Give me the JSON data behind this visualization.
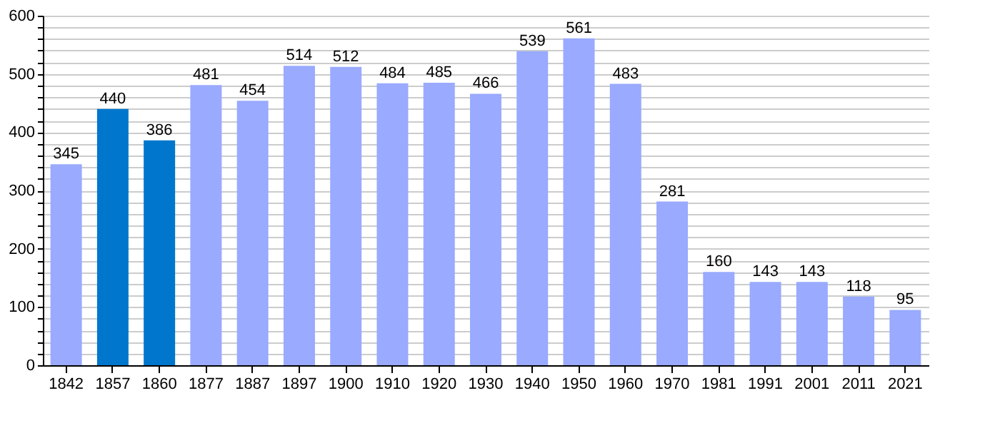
{
  "chart_data": {
    "type": "bar",
    "categories": [
      "1842",
      "1857",
      "1860",
      "1877",
      "1887",
      "1897",
      "1900",
      "1910",
      "1920",
      "1930",
      "1940",
      "1950",
      "1960",
      "1970",
      "1981",
      "1991",
      "2001",
      "2011",
      "2021"
    ],
    "values": [
      345,
      440,
      386,
      481,
      454,
      514,
      512,
      484,
      485,
      466,
      539,
      561,
      483,
      281,
      160,
      143,
      143,
      118,
      95
    ],
    "colors": [
      "#99aaff",
      "#0077cc",
      "#0077cc",
      "#99aaff",
      "#99aaff",
      "#99aaff",
      "#99aaff",
      "#99aaff",
      "#99aaff",
      "#99aaff",
      "#99aaff",
      "#99aaff",
      "#99aaff",
      "#99aaff",
      "#99aaff",
      "#99aaff",
      "#99aaff",
      "#99aaff",
      "#99aaff"
    ],
    "ylim": [
      0,
      600
    ],
    "yticks": [
      0,
      {
        "value": 20,
        "label": null
      },
      {
        "value": 40,
        "label": null
      },
      {
        "value": 60,
        "label": null
      },
      {
        "value": 80,
        "label": null
      },
      100,
      {
        "value": 120,
        "label": null
      },
      {
        "value": 140,
        "label": null
      },
      {
        "value": 160,
        "label": null
      },
      {
        "value": 180,
        "label": null
      },
      200,
      {
        "value": 220,
        "label": null
      },
      {
        "value": 240,
        "label": null
      },
      {
        "value": 260,
        "label": null
      },
      {
        "value": 280,
        "label": null
      },
      300,
      {
        "value": 320,
        "label": null
      },
      {
        "value": 340,
        "label": null
      },
      {
        "value": 360,
        "label": null
      },
      {
        "value": 380,
        "label": null
      },
      400,
      {
        "value": 420,
        "label": null
      },
      {
        "value": 440,
        "label": null
      },
      {
        "value": 460,
        "label": null
      },
      {
        "value": 480,
        "label": null
      },
      500,
      {
        "value": 520,
        "label": null
      },
      {
        "value": 540,
        "label": null
      },
      {
        "value": 560,
        "label": null
      },
      {
        "value": 580,
        "label": null
      },
      600
    ],
    "grid": "y",
    "data_labels": true
  }
}
